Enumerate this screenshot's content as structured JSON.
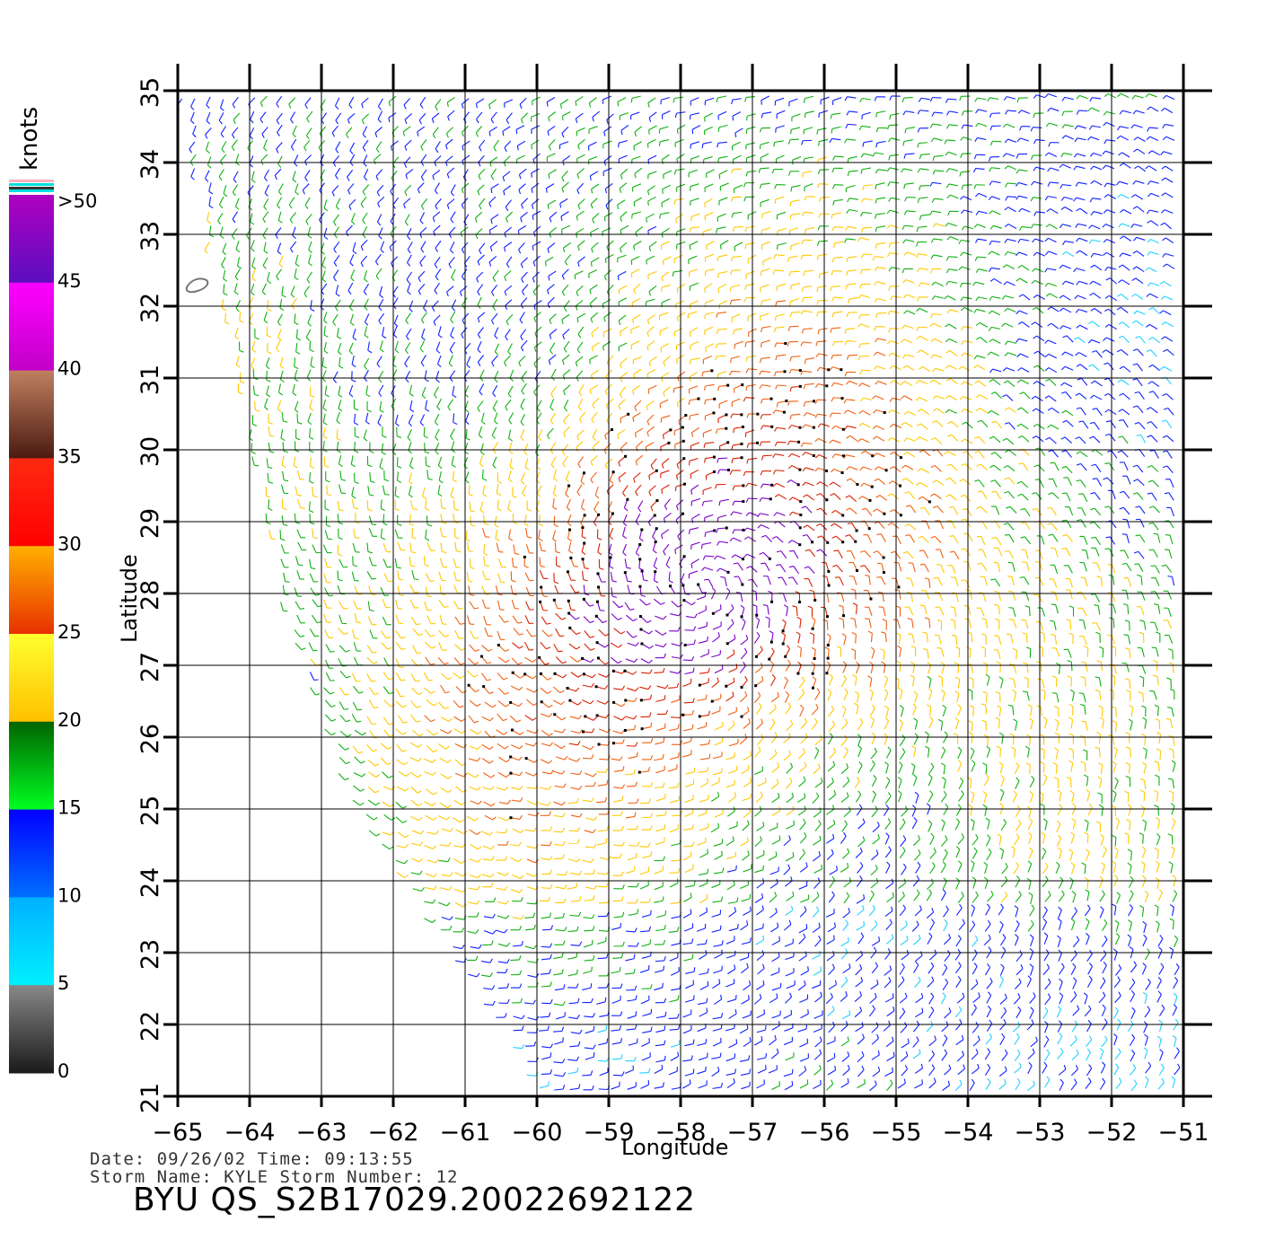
{
  "chart_data": {
    "type": "wind_barbs",
    "xlabel": "Longitude",
    "ylabel": "Latitude",
    "xlim": [
      -65,
      -51
    ],
    "ylim": [
      21,
      35
    ],
    "xticks": [
      "−65",
      "−64",
      "−63",
      "−62",
      "−61",
      "−60",
      "−59",
      "−58",
      "−57",
      "−56",
      "−55",
      "−54",
      "−53",
      "−52",
      "−51"
    ],
    "yticks": [
      "21",
      "22",
      "23",
      "24",
      "25",
      "26",
      "27",
      "28",
      "29",
      "30",
      "31",
      "32",
      "33",
      "34",
      "35"
    ],
    "grid": true,
    "storm_center": {
      "lon": -57.7,
      "lat": 28.1
    },
    "swath_edge_lon_at_lat": [
      [
        35,
        -65
      ],
      [
        28,
        -63.6
      ],
      [
        25,
        -62.6
      ],
      [
        22,
        -60.6
      ],
      [
        21,
        -60.0
      ]
    ]
  },
  "colorbar": {
    "title": "knots",
    "labels": [
      ">50",
      "45",
      "40",
      "35",
      "30",
      "25",
      "20",
      "15",
      "10",
      "5",
      "0"
    ],
    "bins": [
      {
        "range": "45-50",
        "colors": [
          "#b000c0",
          "#5a0fbf"
        ]
      },
      {
        "range": "40-45",
        "colors": [
          "#ff00ff",
          "#c000c8"
        ]
      },
      {
        "range": "35-40",
        "colors": [
          "#c08060",
          "#4a1a10"
        ]
      },
      {
        "range": "30-35",
        "colors": [
          "#ff2a10",
          "#ff0000"
        ]
      },
      {
        "range": "25-30",
        "colors": [
          "#ffb000",
          "#e83000"
        ]
      },
      {
        "range": "20-25",
        "colors": [
          "#ffff30",
          "#ffc000"
        ]
      },
      {
        "range": "15-20",
        "colors": [
          "#006400",
          "#00ff20"
        ]
      },
      {
        "range": "10-15",
        "colors": [
          "#0000ff",
          "#0070ff"
        ]
      },
      {
        "range": "5-10",
        "colors": [
          "#00b0ff",
          "#00f0ff"
        ]
      },
      {
        "range": "0-5",
        "colors": [
          "#888888",
          "#1a1a1a"
        ]
      }
    ]
  },
  "meta": {
    "date_line": "Date: 09/26/02   Time: 09:13:55",
    "storm_line": "Storm Name: KYLE   Storm Number: 12",
    "product": "BYU QS_S2B17029.20022692122"
  }
}
